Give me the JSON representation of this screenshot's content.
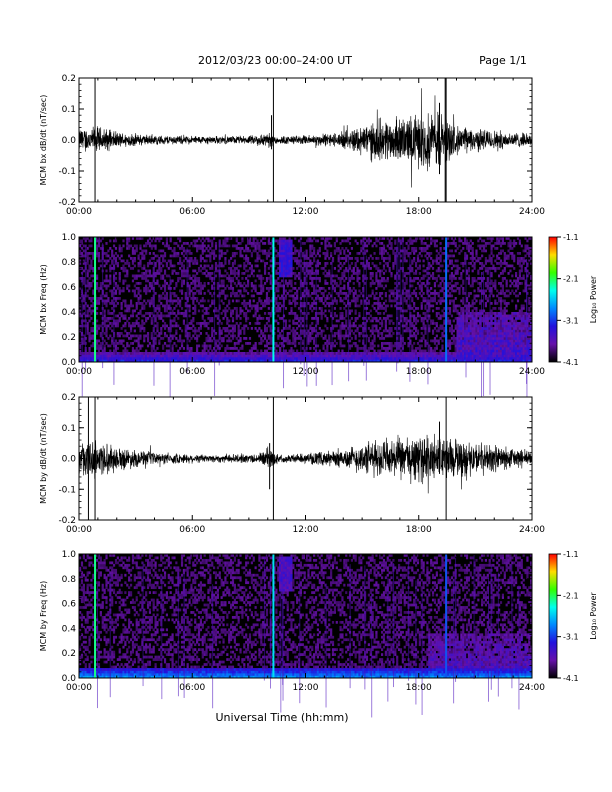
{
  "header": {
    "title": "2012/03/23  00:00–24:00 UT",
    "page": "Page 1/1"
  },
  "xaxis_label": "Universal Time (hh:mm)",
  "time_ticks": [
    "00:00",
    "06:00",
    "12:00",
    "18:00",
    "24:00"
  ],
  "colorbar": {
    "label": "Log₁₀ Power",
    "ticks": [
      "-1.1",
      "-2.1",
      "-3.1",
      "-4.1"
    ],
    "colors": [
      "#ff0000",
      "#ffdd00",
      "#33ff00",
      "#00ffee",
      "#0088ff",
      "#2211dd",
      "#6611aa",
      "#000000"
    ]
  },
  "chart_data": [
    {
      "type": "line",
      "name": "bx-waveform",
      "ylabel": "MCM bx dB/dt (nT/sec)",
      "xlim": [
        0,
        24
      ],
      "ylim": [
        -0.2,
        0.2
      ],
      "y_ticks": [
        "0.2",
        "0.1",
        "0.0",
        "-0.1",
        "-0.2"
      ],
      "x_ticks": [
        0,
        6,
        12,
        18,
        24
      ],
      "grid": false,
      "envelope": [
        {
          "t": 0.0,
          "amp": 0.03
        },
        {
          "t": 1.0,
          "amp": 0.035
        },
        {
          "t": 2.0,
          "amp": 0.02
        },
        {
          "t": 4.0,
          "amp": 0.012
        },
        {
          "t": 7.0,
          "amp": 0.01
        },
        {
          "t": 9.0,
          "amp": 0.01
        },
        {
          "t": 10.0,
          "amp": 0.02
        },
        {
          "t": 10.6,
          "amp": 0.01
        },
        {
          "t": 12.0,
          "amp": 0.012
        },
        {
          "t": 14.0,
          "amp": 0.02
        },
        {
          "t": 15.5,
          "amp": 0.05
        },
        {
          "t": 17.5,
          "amp": 0.06
        },
        {
          "t": 19.0,
          "amp": 0.08
        },
        {
          "t": 20.0,
          "amp": 0.035
        },
        {
          "t": 24.0,
          "amp": 0.015
        }
      ],
      "spikes": [
        {
          "t": 0.85,
          "ymin": -0.2,
          "ymax": 0.2
        },
        {
          "t": 10.3,
          "ymin": -0.2,
          "ymax": 0.2
        },
        {
          "t": 19.4,
          "ymin": -0.2,
          "ymax": 0.2
        },
        {
          "t": 19.45,
          "ymin": -0.2,
          "ymax": 0.2
        },
        {
          "t": 19.1,
          "ymin": -0.11,
          "ymax": 0.12
        },
        {
          "t": 10.2,
          "ymin": -0.03,
          "ymax": 0.08
        }
      ]
    },
    {
      "type": "heatmap",
      "name": "bx-spectrogram",
      "ylabel": "MCM bx Freq (Hz)",
      "xlim": [
        0,
        24
      ],
      "ylim": [
        0.0,
        1.0
      ],
      "y_ticks": [
        "1.0",
        "0.8",
        "0.6",
        "0.4",
        "0.2",
        "0.0"
      ],
      "x_ticks": [
        0,
        6,
        12,
        18,
        24
      ],
      "colorbar_range": [
        -4.1,
        -1.1
      ],
      "features": [
        {
          "kind": "low_band",
          "fmax": 0.08,
          "power": -3.0
        },
        {
          "kind": "broadband",
          "t": 0.85,
          "power": -2.2
        },
        {
          "kind": "broadband",
          "t": 10.3,
          "power": -2.4
        },
        {
          "kind": "broadband",
          "t": 19.45,
          "power": -2.9
        },
        {
          "kind": "blob",
          "t0": 10.6,
          "t1": 11.3,
          "f0": 0.68,
          "f1": 0.98,
          "power": -3.2
        },
        {
          "kind": "patch",
          "t0": 20.0,
          "t1": 24.0,
          "f0": 0.05,
          "f1": 0.4,
          "power": -3.2
        },
        {
          "kind": "patch",
          "t0": 15.0,
          "t1": 20.0,
          "f0": 0.0,
          "f1": 0.9,
          "power": -3.7
        }
      ]
    },
    {
      "type": "line",
      "name": "by-waveform",
      "ylabel": "MCM by dB/dt (nT/sec)",
      "xlim": [
        0,
        24
      ],
      "ylim": [
        -0.2,
        0.2
      ],
      "y_ticks": [
        "0.2",
        "0.1",
        "0.0",
        "-0.1",
        "-0.2"
      ],
      "x_ticks": [
        0,
        6,
        12,
        18,
        24
      ],
      "grid": false,
      "envelope": [
        {
          "t": 0.0,
          "amp": 0.04
        },
        {
          "t": 1.0,
          "amp": 0.05
        },
        {
          "t": 2.0,
          "amp": 0.03
        },
        {
          "t": 4.0,
          "amp": 0.015
        },
        {
          "t": 7.0,
          "amp": 0.01
        },
        {
          "t": 9.5,
          "amp": 0.012
        },
        {
          "t": 10.0,
          "amp": 0.03
        },
        {
          "t": 10.6,
          "amp": 0.01
        },
        {
          "t": 12.0,
          "amp": 0.012
        },
        {
          "t": 14.0,
          "amp": 0.025
        },
        {
          "t": 15.5,
          "amp": 0.045
        },
        {
          "t": 17.5,
          "amp": 0.055
        },
        {
          "t": 19.0,
          "amp": 0.06
        },
        {
          "t": 20.5,
          "amp": 0.045
        },
        {
          "t": 24.0,
          "amp": 0.02
        }
      ],
      "spikes": [
        {
          "t": 0.5,
          "ymin": -0.2,
          "ymax": 0.2
        },
        {
          "t": 0.85,
          "ymin": -0.2,
          "ymax": 0.2
        },
        {
          "t": 10.3,
          "ymin": -0.2,
          "ymax": 0.2
        },
        {
          "t": 19.45,
          "ymin": -0.2,
          "ymax": 0.2
        },
        {
          "t": 10.1,
          "ymin": -0.1,
          "ymax": 0.05
        },
        {
          "t": 19.1,
          "ymin": -0.05,
          "ymax": 0.12
        }
      ]
    },
    {
      "type": "heatmap",
      "name": "by-spectrogram",
      "ylabel": "MCM by Freq (Hz)",
      "xlim": [
        0,
        24
      ],
      "ylim": [
        0.0,
        1.0
      ],
      "y_ticks": [
        "1.0",
        "0.8",
        "0.6",
        "0.4",
        "0.2",
        "0.0"
      ],
      "x_ticks": [
        0,
        6,
        12,
        18,
        24
      ],
      "colorbar_range": [
        -4.1,
        -1.1
      ],
      "features": [
        {
          "kind": "low_band",
          "fmax": 0.08,
          "power": -2.6
        },
        {
          "kind": "broadband",
          "t": 0.85,
          "power": -2.2
        },
        {
          "kind": "broadband",
          "t": 10.3,
          "power": -2.5
        },
        {
          "kind": "broadband",
          "t": 19.45,
          "power": -3.0
        },
        {
          "kind": "blob",
          "t0": 10.6,
          "t1": 11.3,
          "f0": 0.7,
          "f1": 0.98,
          "power": -3.3
        },
        {
          "kind": "patch",
          "t0": 18.5,
          "t1": 24.0,
          "f0": 0.05,
          "f1": 0.35,
          "power": -3.3
        },
        {
          "kind": "patch",
          "t0": 14.0,
          "t1": 18.5,
          "f0": 0.0,
          "f1": 0.6,
          "power": -3.7
        }
      ]
    }
  ]
}
